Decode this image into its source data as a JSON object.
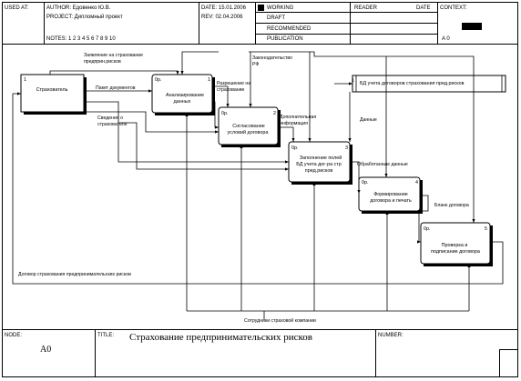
{
  "header": {
    "used_at": "USED AT:",
    "author": "AUTHOR:  Едовенко Ю.В.",
    "project": "PROJECT:  Дипломный проект",
    "date": "DATE:  15.01.2006",
    "rev": "REV:   02.04.2006",
    "notes": "NOTES:  1  2  3  4  5  6  7  8  9  10",
    "working": "WORKING",
    "draft": "DRAFT",
    "recommended": "RECOMMENDED",
    "publication": "PUBLICATION",
    "reader": "READER",
    "date2": "DATE",
    "context": "CONTEXT:",
    "context_node": "A 0"
  },
  "boxes": [
    {
      "id": "strahovatel",
      "text": [
        "Страхователь"
      ],
      "num": "1",
      "op": ""
    },
    {
      "id": "analiz",
      "text": [
        "Анализирование",
        "данных"
      ],
      "num": "1",
      "op": "0р."
    },
    {
      "id": "soglasov",
      "text": [
        "Согласование",
        "условий договора"
      ],
      "num": "2",
      "op": "0р."
    },
    {
      "id": "zapolnenie",
      "text": [
        "Заполнение полей",
        "БД учета дог-ра стр",
        "пред.рисков"
      ],
      "num": "3",
      "op": "0р."
    },
    {
      "id": "formir",
      "text": [
        "Формирование",
        "договора и печать"
      ],
      "num": "4",
      "op": "0р."
    },
    {
      "id": "proverka",
      "text": [
        "Проверка и",
        "подписание договора"
      ],
      "num": "5",
      "op": "0р."
    },
    {
      "id": "bd",
      "text": [
        "БД учета договоров страхования пред.рисков"
      ],
      "num": "1",
      "op": ""
    }
  ],
  "arrow_labels": {
    "zayavlenie": [
      "Заявление на страхование",
      "предприн.рисков"
    ],
    "paket": "Пакет документов",
    "svedeniya": [
      "Сведения о",
      "страхователе"
    ],
    "razreshenie": [
      "Разрешение на",
      "страхование"
    ],
    "zakon": [
      "Законодательство",
      "РФ"
    ],
    "dop_info": [
      "Дополнительная",
      "информация"
    ],
    "dannye": "Данные",
    "obrabot": "Обработанные данные",
    "blank": "Бланк договора",
    "dogovor": "Договор страхования предпринимательских рисков",
    "sotrudniki": "Сотрудники страховой компании"
  },
  "footer": {
    "node_label": "NODE:",
    "node_value": "A0",
    "title_label": "TITLE:",
    "title_value": "Страхование предпринимательских рисков",
    "number_label": "NUMBER:"
  }
}
